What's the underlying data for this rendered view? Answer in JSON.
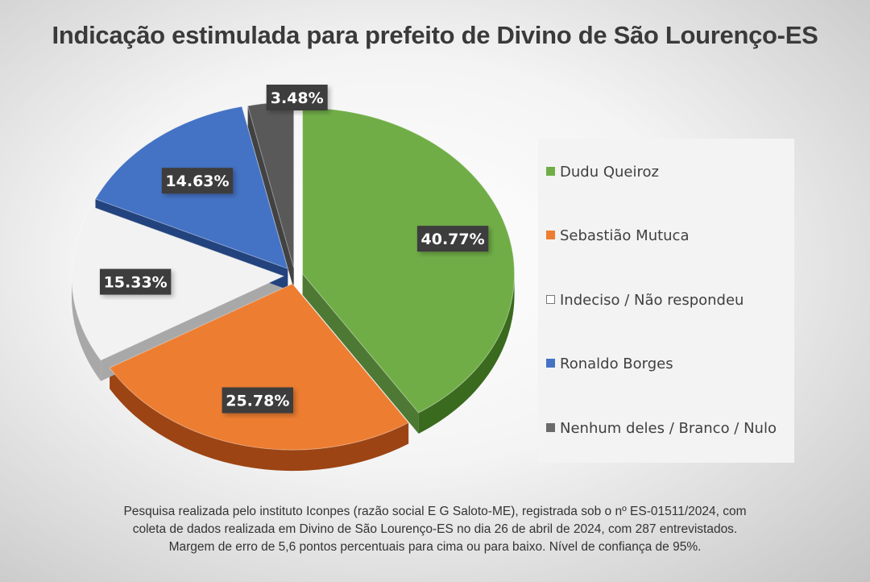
{
  "title": "Indicação estimulada para prefeito de Divino de São Lourenço-ES",
  "chart_data": {
    "type": "pie",
    "slices": [
      {
        "name": "Dudu Queiroz",
        "value": 40.77,
        "label": "40.77%",
        "color": "#70ad47",
        "side": "#3a6a1e"
      },
      {
        "name": "Sebastião Mutuca",
        "value": 25.78,
        "label": "25.78%",
        "color": "#ed7d31",
        "side": "#9c4414"
      },
      {
        "name": "Indeciso / Não respondeu",
        "value": 15.33,
        "label": "15.33%",
        "color": "#f2f2f2",
        "side": "#a8a8a8"
      },
      {
        "name": "Ronaldo Borges",
        "value": 14.63,
        "label": "14.63%",
        "color": "#4472c4",
        "side": "#23437e"
      },
      {
        "name": "Nenhum deles / Branco / Nulo",
        "value": 3.48,
        "label": "3.48%",
        "color": "#595959",
        "side": "#2e2e2e"
      }
    ],
    "legend_position": "right",
    "exploded": true,
    "style": "3d"
  },
  "footer": {
    "lines": [
      "Pesquisa realizada pelo instituto Iconpes (razão social E G Saloto-ME), registrada sob o nº ES-01511/2024, com",
      "coleta de dados realizada em Divino de São Lourenço-ES no dia 26 de abril de 2024, com 287 entrevistados.",
      "Margem de erro de 5,6 pontos percentuais para cima ou para baixo. Nível de confiança de 95%."
    ]
  }
}
